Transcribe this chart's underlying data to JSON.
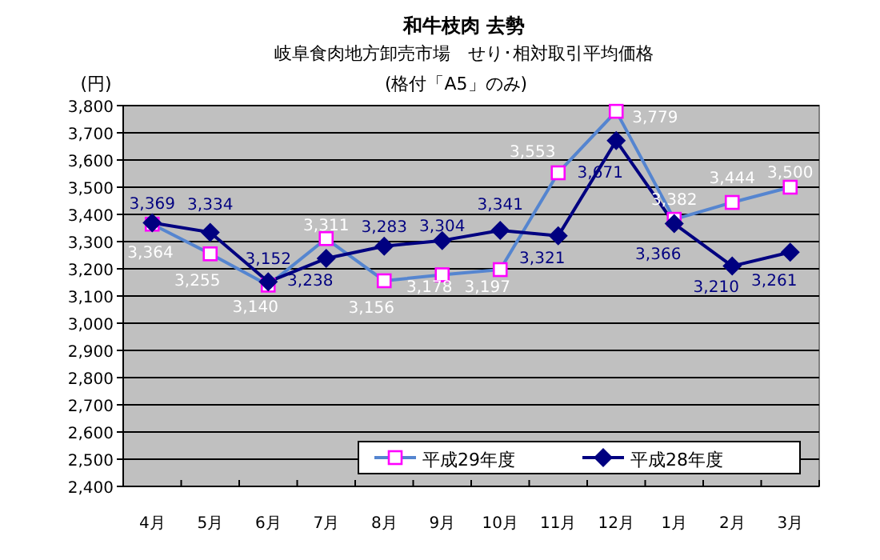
{
  "chart_data": {
    "type": "line",
    "title": "和牛枝肉 去勢",
    "subtitle": "岐阜食肉地方卸売市場　せり･相対取引平均価格",
    "annotations": [
      "(格付「A5」のみ)"
    ],
    "ylabel": "(円)",
    "categories": [
      "4月",
      "5月",
      "6月",
      "7月",
      "8月",
      "9月",
      "10月",
      "11月",
      "12月",
      "1月",
      "2月",
      "3月"
    ],
    "series": [
      {
        "name": "平成29年度",
        "color": "#5585d0",
        "marker": "square",
        "values": [
          3364,
          3255,
          3140,
          3311,
          3156,
          3178,
          3197,
          3553,
          3779,
          3382,
          3444,
          3500
        ],
        "value_labels": [
          "3,364",
          "3,255",
          "3,140",
          "3,311",
          "3,156",
          "3,178",
          "3,197",
          "3,553",
          "3,779",
          "3,382",
          "3,444",
          "3,500"
        ]
      },
      {
        "name": "平成28年度",
        "color": "#000080",
        "marker": "diamond",
        "values": [
          3369,
          3334,
          3152,
          3238,
          3283,
          3304,
          3341,
          3321,
          3671,
          3366,
          3210,
          3261
        ],
        "value_labels": [
          "3,369",
          "3,334",
          "3,152",
          "3,238",
          "3,283",
          "3,304",
          "3,341",
          "3,321",
          "3,671",
          "3,366",
          "3,210",
          "3,261"
        ]
      }
    ],
    "ylim": [
      2400,
      3800
    ],
    "yticks": [
      {
        "value": 2400,
        "label": "2,400"
      },
      {
        "value": 2500,
        "label": "2,500"
      },
      {
        "value": 2600,
        "label": "2,600"
      },
      {
        "value": 2700,
        "label": "2,700"
      },
      {
        "value": 2800,
        "label": "2,800"
      },
      {
        "value": 2900,
        "label": "2,900"
      },
      {
        "value": 3000,
        "label": "3,000"
      },
      {
        "value": 3100,
        "label": "3,100"
      },
      {
        "value": 3200,
        "label": "3,200"
      },
      {
        "value": 3300,
        "label": "3,300"
      },
      {
        "value": 3400,
        "label": "3,400"
      },
      {
        "value": 3500,
        "label": "3,500"
      },
      {
        "value": 3600,
        "label": "3,600"
      },
      {
        "value": 3700,
        "label": "3,700"
      },
      {
        "value": 3800,
        "label": "3,800"
      }
    ],
    "grid": "y",
    "legend": "bottom right"
  }
}
